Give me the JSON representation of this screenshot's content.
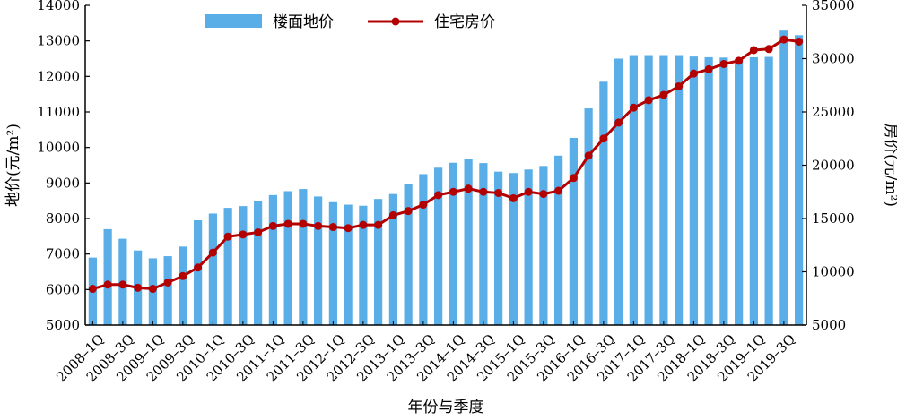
{
  "chart_data": {
    "type": "bar+line",
    "xlabel": "年份与季度",
    "ylabel_left": "地价(元/m²)",
    "ylabel_right": "房价(元/m²)",
    "ylim_left": [
      5000,
      14000
    ],
    "ylim_right": [
      5000,
      35000
    ],
    "yticks_left": [
      "5000",
      "6000",
      "7000",
      "8000",
      "9000",
      "10000",
      "11000",
      "12000",
      "13000",
      "14000"
    ],
    "yticks_right": [
      "5000",
      "10000",
      "15000",
      "20000",
      "25000",
      "30000",
      "35000"
    ],
    "legend_position": "top-center",
    "categories": [
      "2008-1Q",
      "2008-2Q",
      "2008-3Q",
      "2008-4Q",
      "2009-1Q",
      "2009-2Q",
      "2009-3Q",
      "2009-4Q",
      "2010-1Q",
      "2010-2Q",
      "2010-3Q",
      "2010-4Q",
      "2011-1Q",
      "2011-2Q",
      "2011-3Q",
      "2011-4Q",
      "2012-1Q",
      "2012-2Q",
      "2012-3Q",
      "2012-4Q",
      "2013-1Q",
      "2013-2Q",
      "2013-3Q",
      "2013-4Q",
      "2014-1Q",
      "2014-2Q",
      "2014-3Q",
      "2014-4Q",
      "2015-1Q",
      "2015-2Q",
      "2015-3Q",
      "2015-4Q",
      "2016-1Q",
      "2016-2Q",
      "2016-3Q",
      "2016-4Q",
      "2017-1Q",
      "2017-2Q",
      "2017-3Q",
      "2017-4Q",
      "2018-1Q",
      "2018-2Q",
      "2018-3Q",
      "2018-4Q",
      "2019-1Q",
      "2019-2Q",
      "2019-3Q",
      "2019-4Q"
    ],
    "tick_labels": [
      "2008–1Q",
      "2008–3Q",
      "2009–1Q",
      "2009–3Q",
      "2010–1Q",
      "2010–3Q",
      "2011–1Q",
      "2011–3Q",
      "2012–1Q",
      "2012–3Q",
      "2013–1Q",
      "2013–3Q",
      "2014–1Q",
      "2014–3Q",
      "2015–1Q",
      "2015–3Q",
      "2016–1Q",
      "2016–3Q",
      "2017–1Q",
      "2017–3Q",
      "2018–1Q",
      "2018–3Q",
      "2019–1Q",
      "2019–3Q"
    ],
    "series": [
      {
        "name": "楼面地价",
        "type": "bar",
        "axis": "left",
        "color": "#5aaee8",
        "values": [
          6900,
          7700,
          7430,
          7100,
          6880,
          6940,
          7210,
          7950,
          8140,
          8300,
          8350,
          8480,
          8660,
          8770,
          8830,
          8620,
          8460,
          8390,
          8360,
          8550,
          8690,
          8960,
          9250,
          9430,
          9570,
          9670,
          9560,
          9320,
          9280,
          9380,
          9480,
          9770,
          10270,
          11100,
          11850,
          12500,
          12600,
          12600,
          12600,
          12600,
          12560,
          12540,
          12530,
          12500,
          12540,
          12550,
          13290,
          13160
        ]
      },
      {
        "name": "住宅房价",
        "type": "line",
        "axis": "right",
        "color": "#b30000",
        "values": [
          8400,
          8800,
          8800,
          8500,
          8400,
          9000,
          9600,
          10400,
          11800,
          13300,
          13500,
          13700,
          14300,
          14500,
          14500,
          14300,
          14200,
          14100,
          14400,
          14400,
          15300,
          15700,
          16300,
          17200,
          17500,
          17800,
          17500,
          17400,
          16900,
          17500,
          17300,
          17600,
          18800,
          20900,
          22500,
          24000,
          25400,
          26100,
          26600,
          27400,
          28600,
          29000,
          29500,
          29800,
          30800,
          30900,
          31800,
          31600
        ]
      }
    ]
  }
}
